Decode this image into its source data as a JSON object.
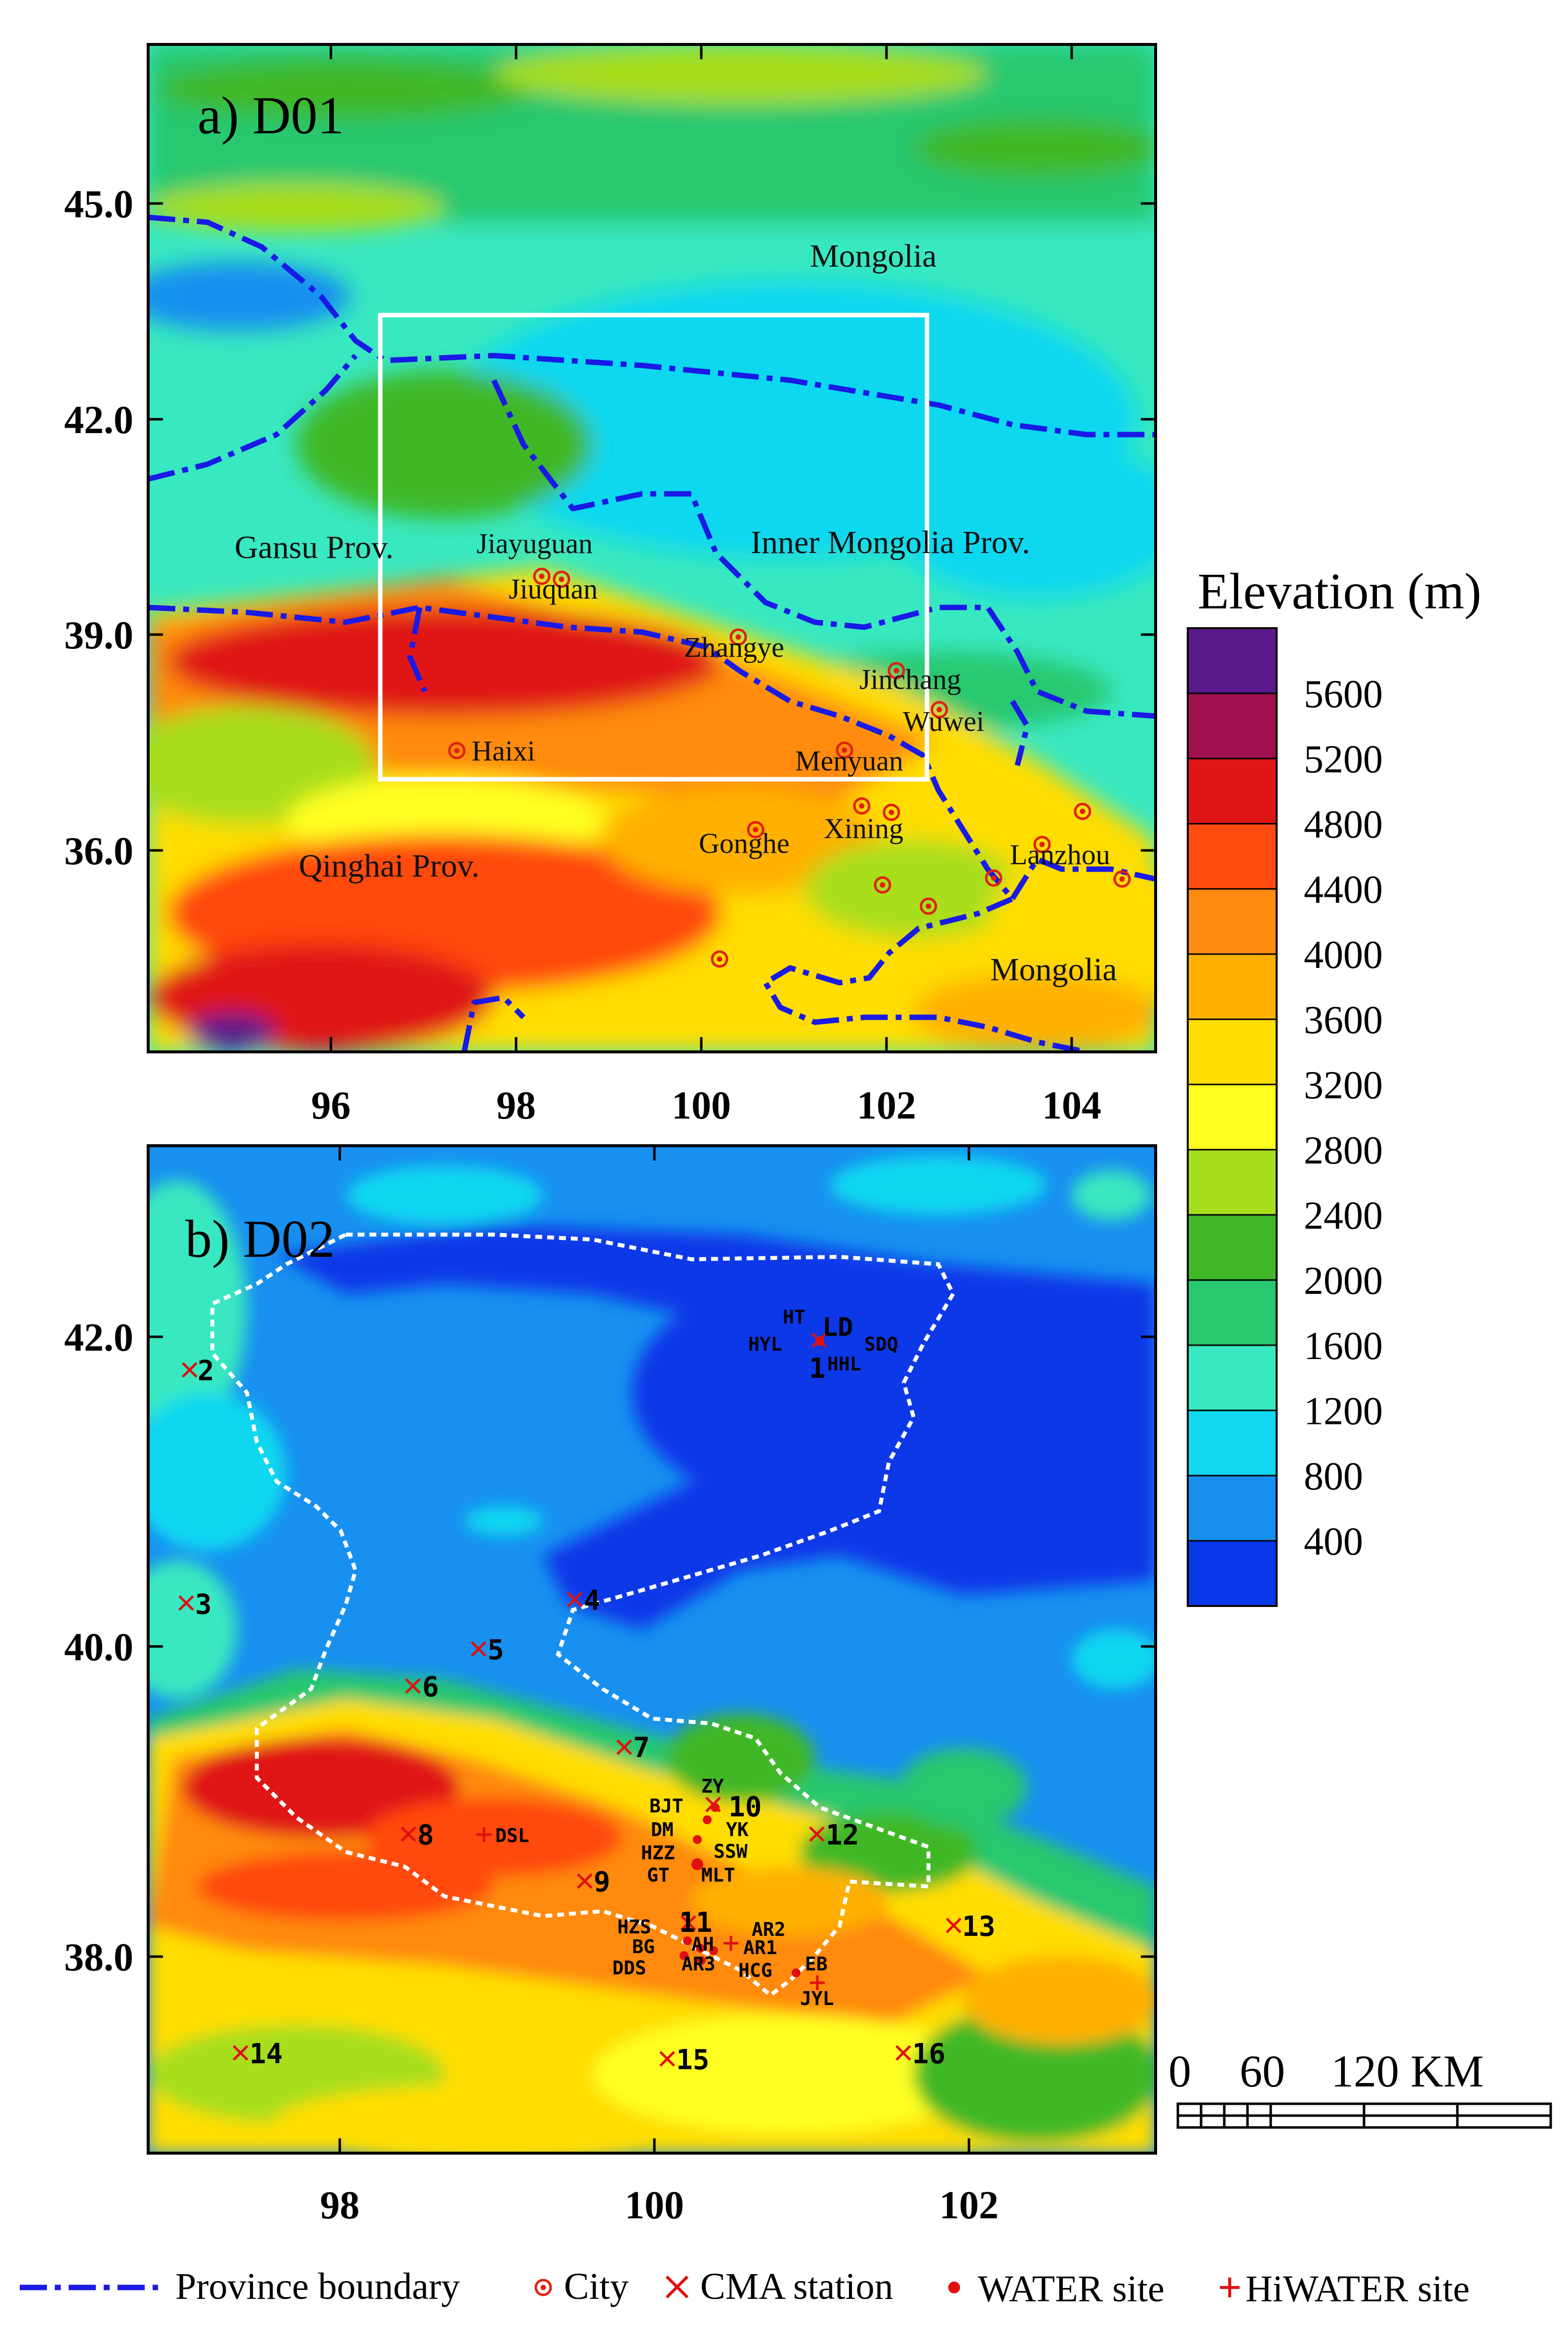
{
  "panel_a": {
    "title": "a) D01",
    "y_ticks": [
      "45.0",
      "42.0",
      "39.0",
      "36.0"
    ],
    "x_ticks": [
      "96",
      "98",
      "100",
      "102",
      "104"
    ],
    "regions": [
      "Mongolia",
      "Inner Mongolia Prov.",
      "Gansu Prov.",
      "Qinghai Prov.",
      "Mongolia"
    ],
    "cities": [
      "Jiayuguan",
      "Jiuquan",
      "Zhangye",
      "Jinchang",
      "Wuwei",
      "Menyuan",
      "Haixi",
      "Xining",
      "Gonghe",
      "Lanzhou"
    ]
  },
  "panel_b": {
    "title": "b) D02",
    "y_ticks": [
      "42.0",
      "40.0",
      "38.0"
    ],
    "x_ticks": [
      "98",
      "100",
      "102"
    ],
    "cma_stations": [
      "1",
      "2",
      "3",
      "4",
      "5",
      "6",
      "7",
      "8",
      "9",
      "10",
      "11",
      "12",
      "13",
      "14",
      "15",
      "16"
    ],
    "water_sites": [
      "HT",
      "LD",
      "HYL",
      "SDQ",
      "HHL",
      "ZY",
      "BJT",
      "DM",
      "YK",
      "HZZ",
      "SSW",
      "GT",
      "MLT",
      "HZS",
      "AR2",
      "BG",
      "AH",
      "AR1",
      "DDS",
      "AR3",
      "HCG",
      "EB",
      "JYL"
    ],
    "hiwater_sites": [
      "DSL"
    ]
  },
  "legend": {
    "title": "Elevation (m)",
    "levels": [
      "5600",
      "5200",
      "4800",
      "4400",
      "4000",
      "3600",
      "3200",
      "2800",
      "2400",
      "2000",
      "1600",
      "1200",
      "800",
      "400"
    ],
    "colors": [
      "#5a1a8c",
      "#a0104e",
      "#e01616",
      "#ff4a10",
      "#ff8a10",
      "#ffb000",
      "#ffdd00",
      "#ffff20",
      "#a8de1c",
      "#40b828",
      "#28c870",
      "#38e8c0",
      "#10d8f0",
      "#1890f0",
      "#0838e8"
    ]
  },
  "scale_bar": {
    "labels": [
      "0",
      "60",
      "120 KM"
    ]
  },
  "key": {
    "province_boundary": "Province boundary",
    "city": "City",
    "cma_station": "CMA station",
    "water_site": "WATER site",
    "hiwater_site": "HiWATER site"
  }
}
